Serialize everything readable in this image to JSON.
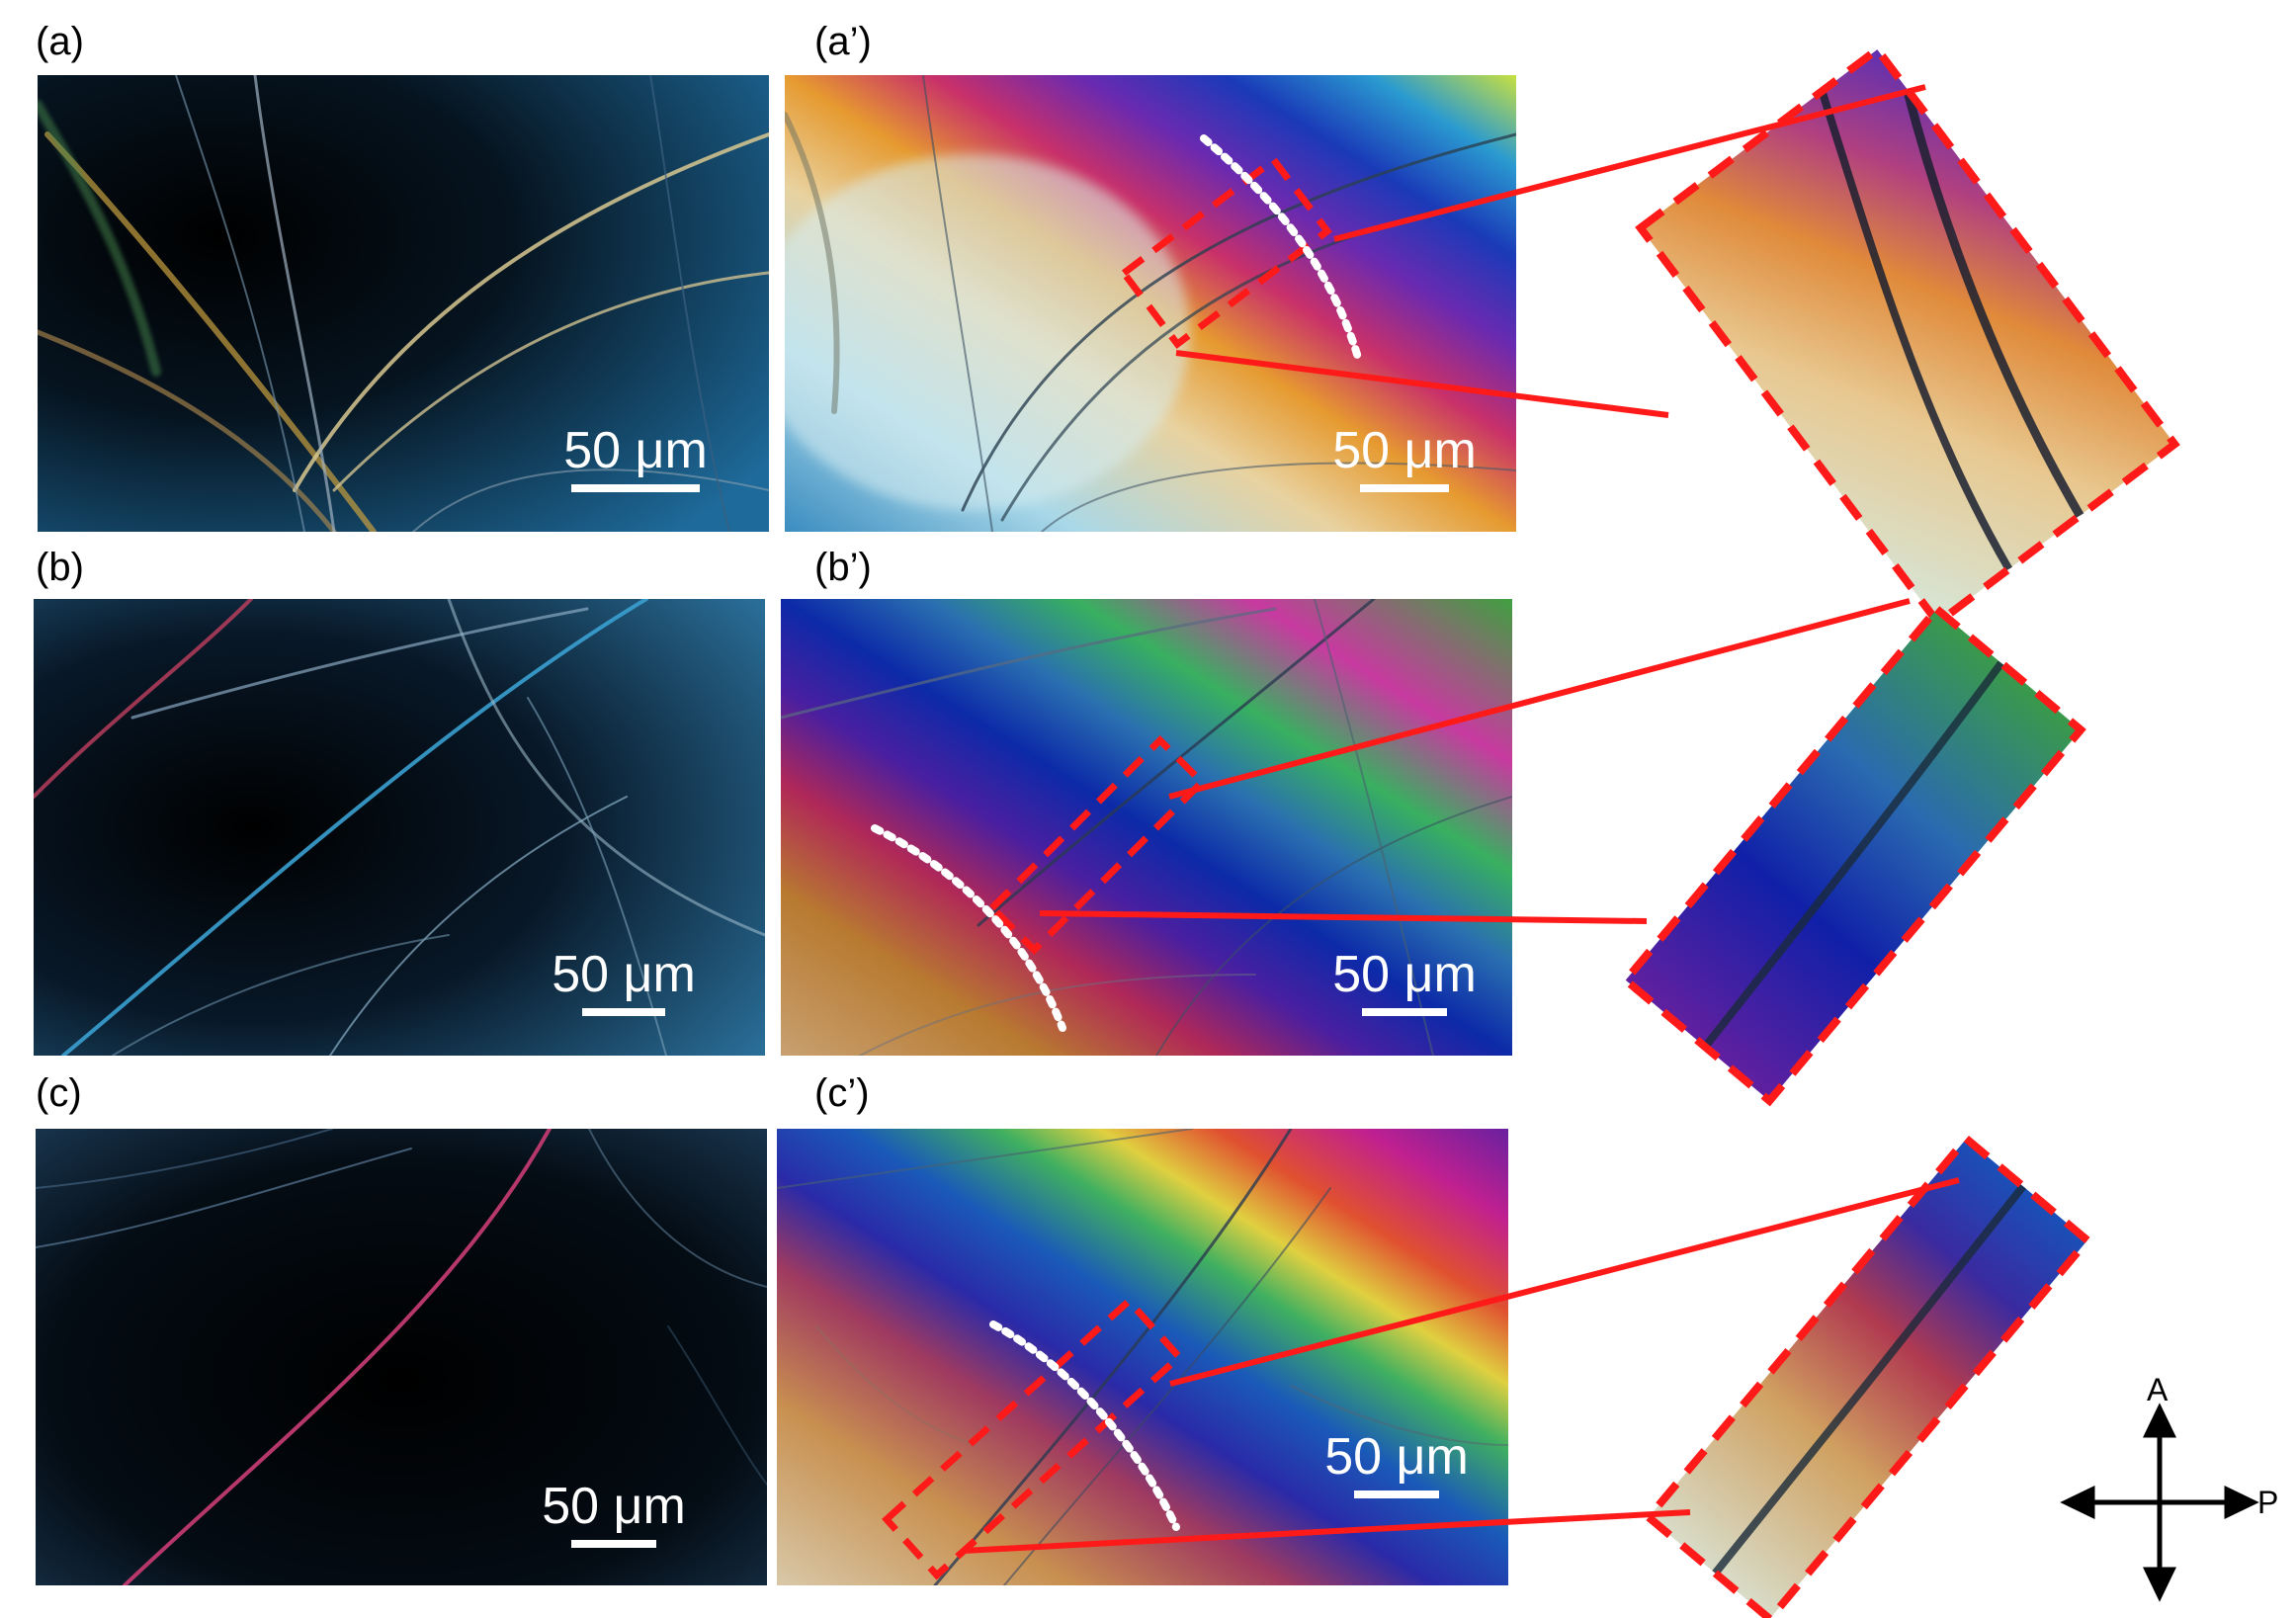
{
  "labels": {
    "a": "(a)",
    "a_prime": "(a’)",
    "b": "(b)",
    "b_prime": "(b’)",
    "c": "(c)",
    "c_prime": "(c’)"
  },
  "scale_bar_text": "50 μm",
  "axis": {
    "analyzer": "A",
    "polarizer": "P"
  },
  "colors": {
    "zoom_outline": "#ff1a1a",
    "guide_dots": "#ffffff",
    "scale_bar": "#ffffff",
    "dark_field_bg": "#06101a"
  }
}
